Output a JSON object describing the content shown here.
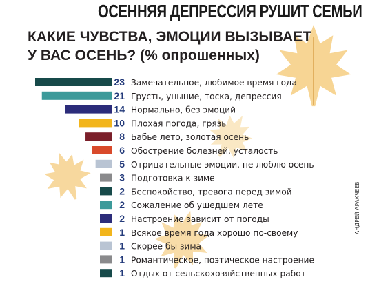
{
  "headline": "ОСЕННЯЯ ДЕПРЕССИЯ РУШИТ СЕМЬИ",
  "credit": "АНДРЕЙ АРАКЧЕЕВ",
  "chart_data": {
    "type": "bar",
    "orientation": "horizontal",
    "title": "КАКИЕ ЧУВСТВА, ЭМОЦИИ ВЫЗЫВАЕТ\nУ ВАС ОСЕНЬ? (% опрошенных)",
    "xlabel": "",
    "ylabel": "",
    "xlim": [
      0,
      23
    ],
    "grid": false,
    "legend": "none",
    "categories": [
      "Замечательное, любимое время года",
      "Грусть, уныние, тоска, депрессия",
      "Нормально, без эмоций",
      "Плохая погода, грязь",
      "Бабье лето, золотая осень",
      "Обострение болезней, усталость",
      "Отрицательные эмоции, не люблю осень",
      "Подготовка к зиме",
      "Беспокойство, тревога перед зимой",
      "Сожаление об ушедшем лете",
      "Настроение зависит от погоды",
      "Всякое время года хорошо по-своему",
      "Скорее бы зима",
      "Романтическое, поэтическое настроение",
      "Отдых от сельскохозяйственных работ"
    ],
    "values": [
      23,
      21,
      14,
      10,
      8,
      6,
      5,
      3,
      2,
      2,
      2,
      1,
      1,
      1,
      1
    ],
    "colors": [
      "#174a4a",
      "#3c9a9a",
      "#2c2c7a",
      "#f2b51c",
      "#7b1f2a",
      "#d94a2b",
      "#b9c4d3",
      "#8a8a8c",
      "#174a4a",
      "#3c9a9a",
      "#2c2c7a",
      "#f2b51c",
      "#b9c4d3",
      "#8a8a8c",
      "#174a4a"
    ],
    "value_color": "#233a7a"
  }
}
